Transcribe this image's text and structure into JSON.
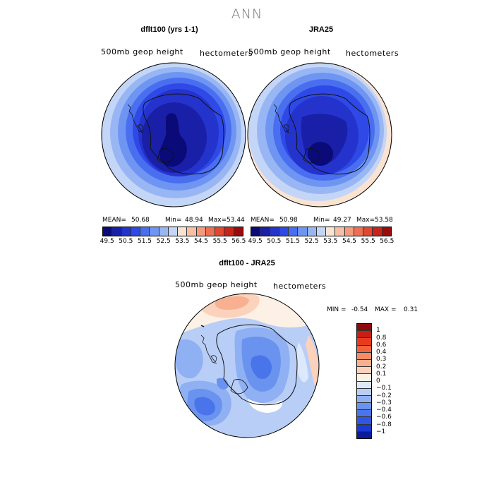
{
  "main_title": "ANN",
  "panels": [
    {
      "title": "dflt100 (yrs 1-1)",
      "field_label": "500mb geop height",
      "units_label": "hectometers",
      "mean_label": "MEAN=",
      "mean": "50.68",
      "min_label": "Min=",
      "min": "48.94",
      "max_label": "Max=",
      "max": "53.44"
    },
    {
      "title": "JRA25",
      "field_label": "500mb geop height",
      "units_label": "hectometers",
      "mean_label": "MEAN=",
      "mean": "50.98",
      "min_label": "Min=",
      "min": "49.27",
      "max_label": "Max=",
      "max": "53.58"
    }
  ],
  "colorbar_top": {
    "colors": [
      "#0a0a78",
      "#1a1fa8",
      "#2433cc",
      "#2e49e6",
      "#4a6ef0",
      "#6e95f2",
      "#99b6f4",
      "#c4d6f7",
      "#fbe3d2",
      "#f7c0a4",
      "#f39b7c",
      "#ee7052",
      "#e3472f",
      "#c8241a",
      "#9a0b0b"
    ],
    "tick_labels": [
      "49.5",
      "50.5",
      "51.5",
      "52.5",
      "53.5",
      "54.5",
      "55.5",
      "56.5"
    ]
  },
  "diff_panel": {
    "title": "dflt100 - JRA25",
    "field_label": "500mb geop height",
    "units_label": "hectometers",
    "min_label": "MIN =",
    "min": "-0.54",
    "max_label": "MAX =",
    "max": "0.31"
  },
  "colorbar_diff": {
    "colors": [
      "#8c0a0a",
      "#c81e14",
      "#e63c1e",
      "#f0643c",
      "#f58c64",
      "#f8b090",
      "#fbd2bc",
      "#fdf0e4",
      "#dce8fb",
      "#b8cef7",
      "#8fb0f3",
      "#6a92ef",
      "#4a74ea",
      "#2f56e2",
      "#1a3ad2",
      "#0a1c9a"
    ],
    "tick_labels": [
      "1",
      "0.8",
      "0.6",
      "0.4",
      "0.3",
      "0.2",
      "0.1",
      "0",
      "−0.1",
      "−0.2",
      "−0.3",
      "−0.4",
      "−0.6",
      "−0.8",
      "−1"
    ]
  }
}
